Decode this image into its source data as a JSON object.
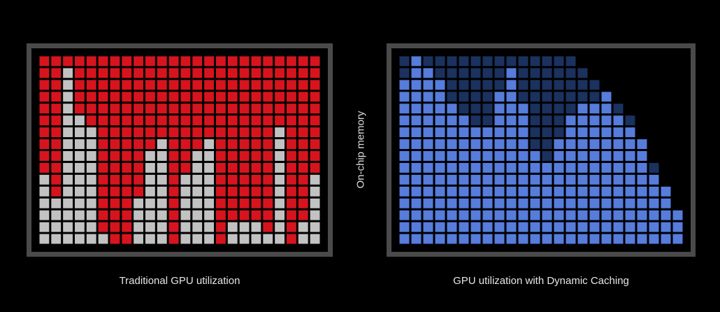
{
  "left_panel": {
    "caption": "Traditional GPU utilization",
    "colors": {
      "used": "#d7141e",
      "unused": "#c2c2c2"
    },
    "rows": 16,
    "cols": 24,
    "column_used_heights": [
      10,
      12,
      1,
      5,
      6,
      15,
      16,
      16,
      12,
      8,
      7,
      16,
      10,
      8,
      7,
      16,
      14,
      14,
      14,
      15,
      6,
      16,
      14,
      10
    ]
  },
  "right_panel": {
    "caption": "GPU utilization with Dynamic Caching",
    "colors": {
      "bright": "#5b83e8",
      "dim": "#1e3668"
    },
    "rows": 16,
    "cols": 24,
    "column_bright_heights": [
      14,
      16,
      15,
      14,
      12,
      11,
      10,
      10,
      13,
      15,
      12,
      8,
      7,
      9,
      11,
      12,
      12,
      13,
      11,
      10,
      9,
      6,
      5,
      3
    ],
    "column_total_heights": [
      16,
      16,
      16,
      16,
      16,
      16,
      16,
      16,
      16,
      16,
      16,
      16,
      16,
      16,
      16,
      15,
      14,
      13,
      12,
      11,
      9,
      7,
      5,
      3
    ]
  },
  "axis_label": "On-chip memory"
}
